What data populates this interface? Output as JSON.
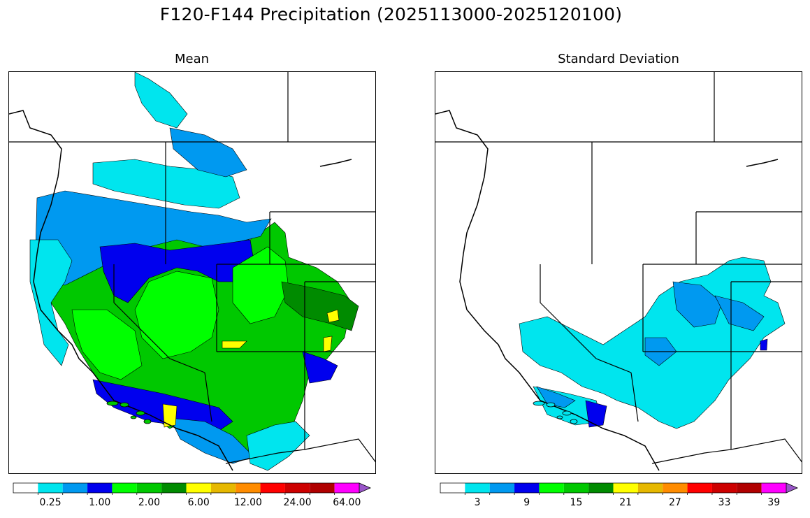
{
  "figure": {
    "title": "F120-F144 Precipitation (2025113000-2025120100)"
  },
  "colors": {
    "levels": [
      "#ffffff",
      "#00e5ee",
      "#0099f0",
      "#0000ee",
      "#00ff00",
      "#00c800",
      "#008b00",
      "#ffff00",
      "#e6b800",
      "#ff8c00",
      "#ff0000",
      "#cd0000",
      "#b00000",
      "#ff00ff",
      "#9955c9"
    ]
  },
  "panels": [
    {
      "name": "mean",
      "title": "Mean",
      "colorbar_labels": [
        "0.25",
        "1.00",
        "2.00",
        "6.00",
        "12.00",
        "24.00",
        "64.00"
      ],
      "colorbar_label_boxes": [
        1,
        3,
        5,
        7,
        9,
        11,
        13
      ]
    },
    {
      "name": "std",
      "title": "Standard Deviation",
      "colorbar_labels": [
        "3",
        "9",
        "15",
        "21",
        "27",
        "33",
        "39"
      ],
      "colorbar_label_boxes": [
        1,
        3,
        5,
        7,
        9,
        11,
        13
      ]
    }
  ]
}
